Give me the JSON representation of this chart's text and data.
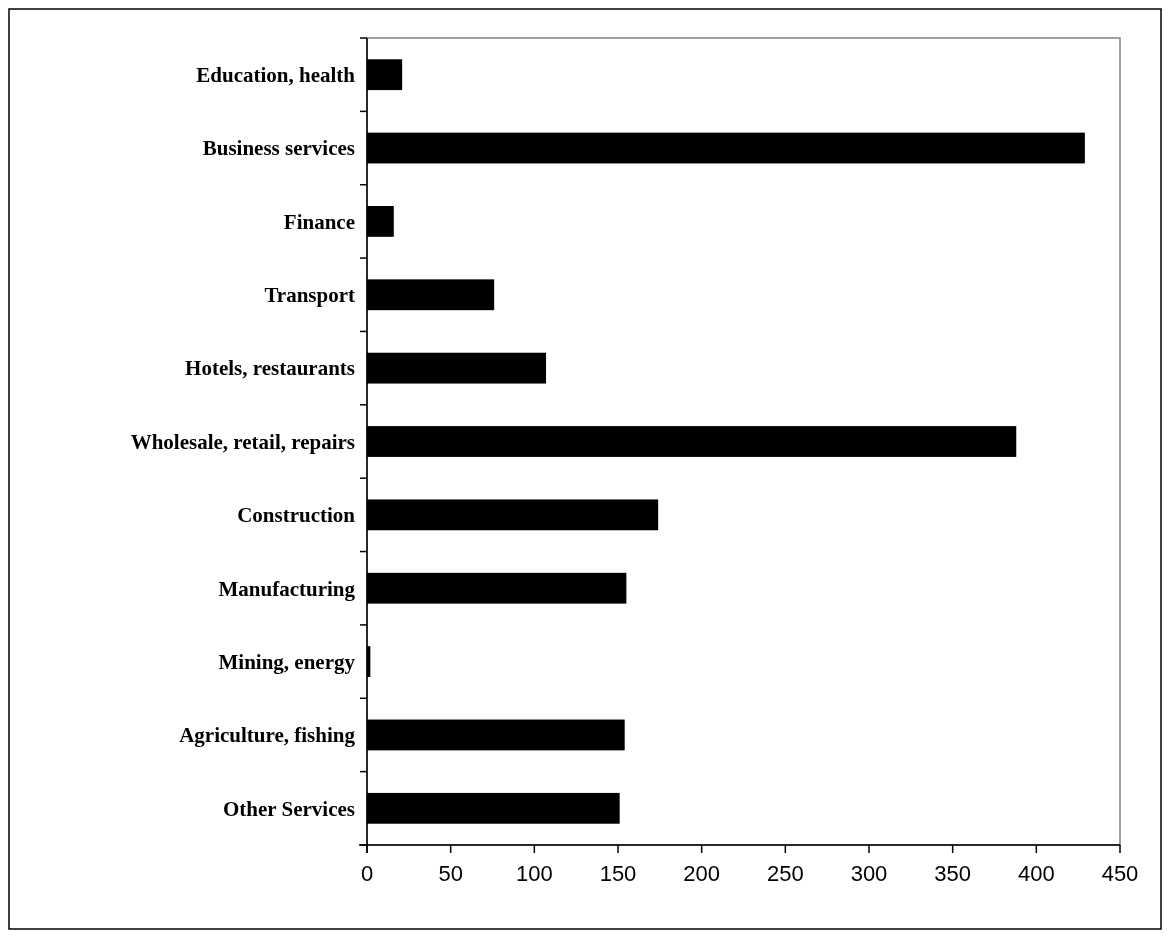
{
  "chart_data": {
    "type": "bar",
    "orientation": "horizontal",
    "categories": [
      "Education, health",
      "Business services",
      "Finance",
      "Transport",
      "Hotels, restaurants",
      "Wholesale, retail, repairs",
      "Construction",
      "Manufacturing",
      "Mining, energy",
      "Agriculture, fishing",
      "Other Services"
    ],
    "values": [
      21,
      429,
      16,
      76,
      107,
      388,
      174,
      155,
      2,
      154,
      151
    ],
    "color": "#000000",
    "xlim": [
      0,
      450
    ],
    "xticks": [
      0,
      50,
      100,
      150,
      200,
      250,
      300,
      350,
      400,
      450
    ],
    "grid": false
  }
}
